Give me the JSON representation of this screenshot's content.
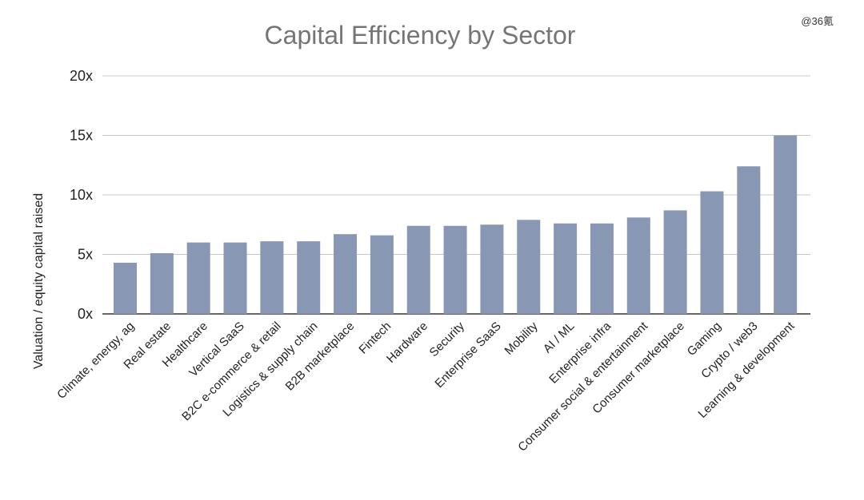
{
  "watermark": "@36氪",
  "chart_data": {
    "type": "bar",
    "title": "Capital Efficiency by Sector",
    "xlabel": "",
    "ylabel": "Valuation / equity capital raised",
    "ylim": [
      0,
      20
    ],
    "yticks": [
      "0x",
      "5x",
      "10x",
      "15x",
      "20x"
    ],
    "grid": true,
    "bar_color": "#8797B4",
    "categories": [
      "Climate, energy, ag",
      "Real estate",
      "Healthcare",
      "Vertical SaaS",
      "B2C e-commerce & retail",
      "Logistics & supply chain",
      "B2B marketplace",
      "Fintech",
      "Hardware",
      "Security",
      "Enterprise SaaS",
      "Mobility",
      "AI / ML",
      "Enterprise infra",
      "Consumer social & entertainment",
      "Consumer marketplace",
      "Gaming",
      "Crypto / web3",
      "Learning & development"
    ],
    "values": [
      4.3,
      5.1,
      6.0,
      6.0,
      6.1,
      6.1,
      6.7,
      6.6,
      7.4,
      7.4,
      7.5,
      7.9,
      7.6,
      7.6,
      8.1,
      8.7,
      10.3,
      12.4,
      15.0
    ]
  }
}
